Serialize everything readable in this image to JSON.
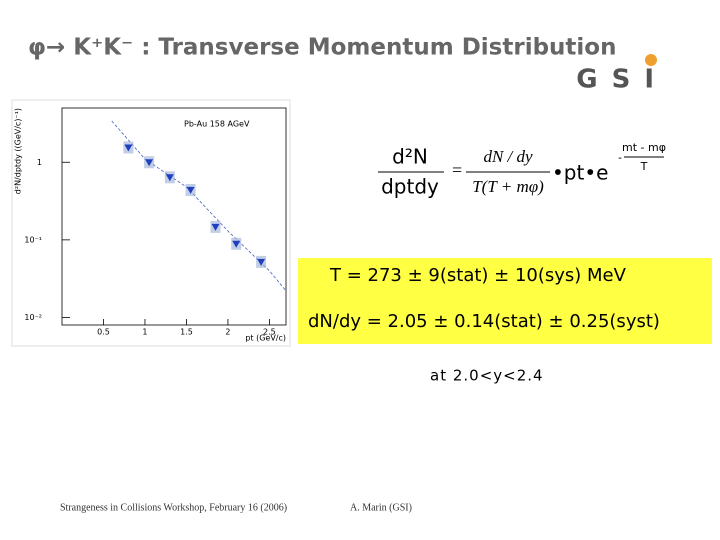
{
  "slide": {
    "title": "φ→ K⁺K⁻ : Transverse Momentum Distribution",
    "logo": "GSI",
    "formula": {
      "lhs_num": "d²N",
      "lhs_den": "dptdy",
      "eq": "=",
      "rhs_num": "dN / dy",
      "rhs_den": "T(T + mφ)",
      "factor": "•pt•e",
      "exp_sign": "-",
      "exp_num": "mt - mφ",
      "exp_den": "T"
    },
    "results": [
      "T = 273 ± 9(stat) ± 10(sys) MeV",
      "dN/dy = 2.05 ± 0.14(stat) ± 0.25(syst)"
    ],
    "rapidity": "at 2.0<y<2.4",
    "footer": "Strangeness in Collisions Workshop, February 16 (2006)",
    "author": "A. Marin (GSI)"
  },
  "chart_data": {
    "type": "scatter",
    "annotation": "Pb-Au 158 AGeV",
    "x_label": "pt (GeV/c)",
    "y_label": "d²N/dptdy ((GeV/c)⁻¹)",
    "xlim": [
      0,
      2.7
    ],
    "xticks": [
      0.5,
      1,
      1.5,
      2,
      2.5
    ],
    "ylim": [
      0.008,
      5
    ],
    "yticks": [
      {
        "value": 0.01,
        "label": "10⁻²"
      },
      {
        "value": 0.1,
        "label": "10⁻¹"
      },
      1
    ],
    "log_y": true,
    "series": [
      {
        "color": "#1f3fbf",
        "x": [
          0.8,
          1.05,
          1.3,
          1.55,
          1.85,
          2.1,
          2.4
        ],
        "values": [
          1.55,
          1.0,
          0.64,
          0.44,
          0.147,
          0.089,
          0.052
        ]
      }
    ],
    "fit": {
      "x": [
        0.6,
        1.0,
        1.5,
        2.0,
        2.5,
        2.7
      ],
      "values": [
        3.4,
        1.1,
        0.48,
        0.13,
        0.04,
        0.022
      ]
    }
  }
}
